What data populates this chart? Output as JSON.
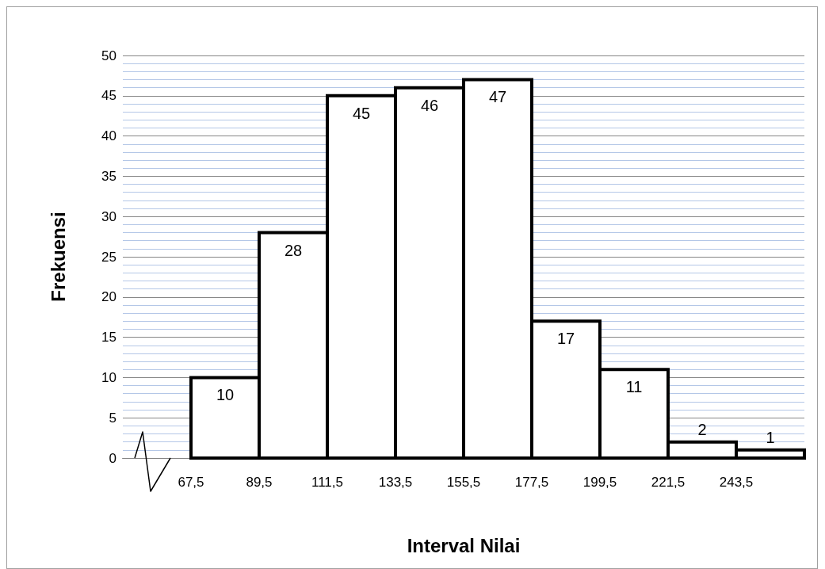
{
  "chart_data": {
    "type": "histogram",
    "xlabel": "Interval Nilai",
    "ylabel": "Frekuensi",
    "bins": [
      67.5,
      89.5,
      111.5,
      133.5,
      155.5,
      177.5,
      199.5,
      221.5,
      243.5,
      265.5
    ],
    "values": [
      10,
      28,
      45,
      46,
      47,
      17,
      11,
      2,
      1
    ],
    "color": "#ffffff",
    "data_labels": true,
    "grid": "y",
    "xlim": [
      45.5,
      265.5
    ],
    "xticks": [
      {
        "value": 67.5,
        "label": "67,5"
      },
      {
        "value": 89.5,
        "label": "89,5"
      },
      {
        "value": 111.5,
        "label": "111,5"
      },
      {
        "value": 133.5,
        "label": "133,5"
      },
      {
        "value": 155.5,
        "label": "155,5"
      },
      {
        "value": 177.5,
        "label": "177,5"
      },
      {
        "value": 199.5,
        "label": "199,5"
      },
      {
        "value": 221.5,
        "label": "221,5"
      },
      {
        "value": 243.5,
        "label": "243,5"
      }
    ],
    "ylim": [
      0,
      50
    ],
    "yticks": [
      0,
      {
        "value": 1,
        "label": null
      },
      {
        "value": 2,
        "label": null
      },
      {
        "value": 3,
        "label": null
      },
      {
        "value": 4,
        "label": null
      },
      5,
      {
        "value": 6,
        "label": null
      },
      {
        "value": 7,
        "label": null
      },
      {
        "value": 8,
        "label": null
      },
      {
        "value": 9,
        "label": null
      },
      10,
      {
        "value": 11,
        "label": null
      },
      {
        "value": 12,
        "label": null
      },
      {
        "value": 13,
        "label": null
      },
      {
        "value": 14,
        "label": null
      },
      15,
      {
        "value": 16,
        "label": null
      },
      {
        "value": 17,
        "label": null
      },
      {
        "value": 18,
        "label": null
      },
      {
        "value": 19,
        "label": null
      },
      20,
      {
        "value": 21,
        "label": null
      },
      {
        "value": 22,
        "label": null
      },
      {
        "value": 23,
        "label": null
      },
      {
        "value": 24,
        "label": null
      },
      25,
      {
        "value": 26,
        "label": null
      },
      {
        "value": 27,
        "label": null
      },
      {
        "value": 28,
        "label": null
      },
      {
        "value": 29,
        "label": null
      },
      30,
      {
        "value": 31,
        "label": null
      },
      {
        "value": 32,
        "label": null
      },
      {
        "value": 33,
        "label": null
      },
      {
        "value": 34,
        "label": null
      },
      35,
      {
        "value": 36,
        "label": null
      },
      {
        "value": 37,
        "label": null
      },
      {
        "value": 38,
        "label": null
      },
      {
        "value": 39,
        "label": null
      },
      40,
      {
        "value": 41,
        "label": null
      },
      {
        "value": 42,
        "label": null
      },
      {
        "value": 43,
        "label": null
      },
      {
        "value": 44,
        "label": null
      },
      45,
      {
        "value": 46,
        "label": null
      },
      {
        "value": 47,
        "label": null
      },
      {
        "value": 48,
        "label": null
      },
      {
        "value": 49,
        "label": null
      },
      50
    ]
  }
}
